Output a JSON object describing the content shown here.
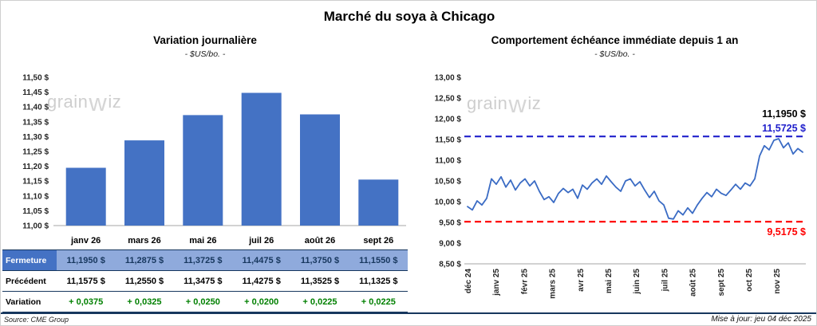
{
  "page": {
    "title": "Marché du soya à Chicago",
    "source": "Source: CME Group",
    "updated": "Mise à jour: jeu 04 déc 2025",
    "watermark": {
      "pre": "grain",
      "mid": "w",
      "post": "iz"
    }
  },
  "colors": {
    "bar": "#4472C4",
    "line": "#3A6BC4",
    "axis": "#A6A6A6",
    "navy": "#17375E",
    "resistance_blue": "#2121CC",
    "support_red": "#FF0000",
    "variation_green": "#008000"
  },
  "chart_data": [
    {
      "type": "bar",
      "title": "Variation journalière",
      "subtitle": "- $US/bo. -",
      "categories": [
        "janv 26",
        "mars 26",
        "mai 26",
        "juil 26",
        "août 26",
        "sept 26"
      ],
      "values": [
        11.195,
        11.2875,
        11.3725,
        11.4475,
        11.375,
        11.155
      ],
      "ylim": [
        11.0,
        11.5
      ],
      "y_tick_values": [
        11.5,
        11.45,
        11.4,
        11.35,
        11.3,
        11.25,
        11.2,
        11.15,
        11.1,
        11.05,
        11.0
      ],
      "y_tick_labels": [
        "11,50 $",
        "11,45 $",
        "11,40 $",
        "11,35 $",
        "11,30 $",
        "11,25 $",
        "11,20 $",
        "11,15 $",
        "11,10 $",
        "11,05 $",
        "11,00 $"
      ],
      "grid": false,
      "legend": false,
      "table": {
        "rows": [
          {
            "label": "Fermeture",
            "style": "close",
            "values": [
              "11,1950 $",
              "11,2875 $",
              "11,3725 $",
              "11,4475 $",
              "11,3750 $",
              "11,1550 $"
            ]
          },
          {
            "label": "Précédent",
            "style": "prev",
            "values": [
              "11,1575 $",
              "11,2550 $",
              "11,3475 $",
              "11,4275 $",
              "11,3525 $",
              "11,1325 $"
            ]
          },
          {
            "label": "Variation",
            "style": "var",
            "values": [
              "+ 0,0375",
              "+ 0,0325",
              "+ 0,0250",
              "+ 0,0200",
              "+ 0,0225",
              "+ 0,0225"
            ]
          }
        ]
      }
    },
    {
      "type": "line",
      "title": "Comportement échéance immédiate depuis 1 an",
      "subtitle": "- $US/bo. -",
      "x_labels": [
        "déc 24",
        "janv 25",
        "févr 25",
        "mars 25",
        "avr 25",
        "mai 25",
        "juin 25",
        "juil 25",
        "août 25",
        "sept 25",
        "oct 25",
        "nov 25"
      ],
      "ylim": [
        8.5,
        13.0
      ],
      "y_tick_values": [
        13.0,
        12.5,
        12.0,
        11.5,
        11.0,
        10.5,
        10.0,
        9.5,
        9.0,
        8.5
      ],
      "y_tick_labels": [
        "13,00 $",
        "12,50 $",
        "12,00 $",
        "11,50 $",
        "11,00 $",
        "10,50 $",
        "10,00 $",
        "9,50 $",
        "9,00 $",
        "8,50 $"
      ],
      "grid": false,
      "legend": false,
      "series": [
        {
          "name": "échéance immédiate",
          "values": [
            9.88,
            9.8,
            10.02,
            9.92,
            10.08,
            10.55,
            10.42,
            10.6,
            10.35,
            10.52,
            10.28,
            10.45,
            10.55,
            10.38,
            10.5,
            10.25,
            10.05,
            10.12,
            9.98,
            10.2,
            10.32,
            10.22,
            10.3,
            10.08,
            10.4,
            10.3,
            10.45,
            10.55,
            10.42,
            10.62,
            10.48,
            10.35,
            10.25,
            10.5,
            10.55,
            10.38,
            10.48,
            10.28,
            10.1,
            10.25,
            10.02,
            9.92,
            9.6,
            9.58,
            9.78,
            9.68,
            9.85,
            9.72,
            9.92,
            10.08,
            10.22,
            10.12,
            10.3,
            10.2,
            10.15,
            10.28,
            10.42,
            10.3,
            10.45,
            10.38,
            10.55,
            11.1,
            11.35,
            11.25,
            11.48,
            11.52,
            11.3,
            11.42,
            11.15,
            11.28,
            11.195
          ]
        }
      ],
      "reference_lines": [
        {
          "name": "resistance",
          "value": 11.5725,
          "label": "11,5725 $",
          "color": "#2121CC",
          "style": "dashed"
        },
        {
          "name": "support",
          "value": 9.5175,
          "label": "9,5175 $",
          "color": "#FF0000",
          "style": "dashed"
        }
      ],
      "last_value_label": "11,1950 $"
    }
  ]
}
